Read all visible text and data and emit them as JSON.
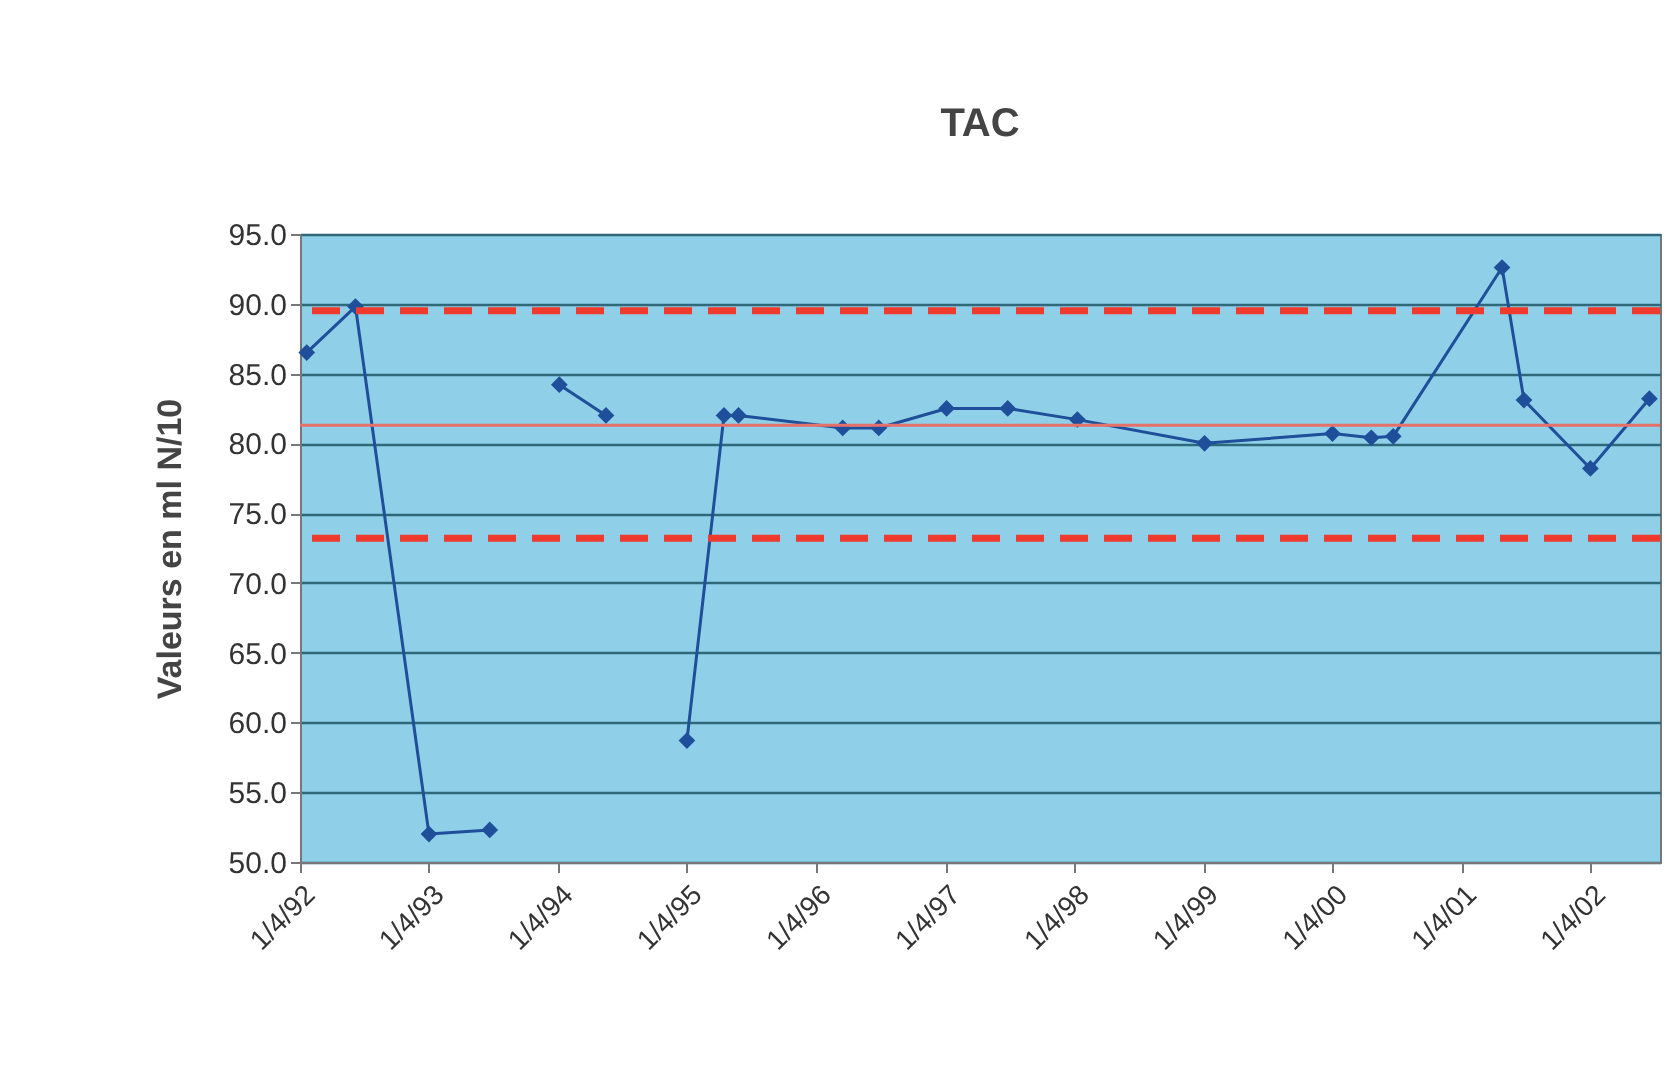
{
  "chart_data": {
    "type": "line",
    "title": "TAC",
    "ylabel": "Valeurs en ml N/10",
    "x": [
      "1992-04-20",
      "1992-09-05",
      "1993-04-01",
      "1993-09-20",
      "1993-12-01",
      "1994-04-05",
      "1994-08-15",
      "1994-12-01",
      "1995-04-01",
      "1995-07-15",
      "1995-08-25",
      "1996-06-15",
      "1996-09-25",
      "1997-04-05",
      "1997-09-25",
      "1998-04-10",
      "1999-04-05",
      "2000-04-01",
      "2000-07-20",
      "2000-09-20",
      "2001-07-25",
      "2001-09-25",
      "2002-04-01",
      "2002-09-15"
    ],
    "series": [
      {
        "color": "#1f4e9a",
        "values": [
          86.5,
          89.8,
          52.0,
          52.3,
          null,
          84.2,
          82.0,
          null,
          58.7,
          82.0,
          82.0,
          81.1,
          81.1,
          82.5,
          82.5,
          81.7,
          80.0,
          80.7,
          80.4,
          80.5,
          92.6,
          83.1,
          78.2,
          83.2
        ]
      }
    ],
    "xlim": [
      "1992-04-01",
      "2002-10-15"
    ],
    "xticks": [
      {
        "value": "1992-04-01",
        "label": "1/4/92"
      },
      {
        "value": "1993-04-01",
        "label": "1/4/93"
      },
      {
        "value": "1994-04-01",
        "label": "1/4/94"
      },
      {
        "value": "1995-04-01",
        "label": "1/4/95"
      },
      {
        "value": "1996-04-01",
        "label": "1/4/96"
      },
      {
        "value": "1997-04-01",
        "label": "1/4/97"
      },
      {
        "value": "1998-04-01",
        "label": "1/4/98"
      },
      {
        "value": "1999-04-01",
        "label": "1/4/99"
      },
      {
        "value": "2000-04-01",
        "label": "1/4/00"
      },
      {
        "value": "2001-04-01",
        "label": "1/4/01"
      },
      {
        "value": "2002-04-01",
        "label": "1/4/02"
      }
    ],
    "ylim": [
      50,
      95
    ],
    "yticks": [
      {
        "value": 50,
        "label": "50.0"
      },
      {
        "value": 55,
        "label": "55.0"
      },
      {
        "value": 60,
        "label": "60.0"
      },
      {
        "value": 65,
        "label": "65.0"
      },
      {
        "value": 70,
        "label": "70.0"
      },
      {
        "value": 75,
        "label": "75.0"
      },
      {
        "value": 80,
        "label": "80.0"
      },
      {
        "value": 85,
        "label": "85.0"
      },
      {
        "value": 90,
        "label": "90.0"
      },
      {
        "value": 95,
        "label": "95.0"
      }
    ],
    "ref_lines": [
      {
        "axis": "y",
        "value": 89.5,
        "color": "#f03a2e",
        "line_style": "dashed"
      },
      {
        "axis": "y",
        "value": 81.3,
        "color": "#e8706a",
        "line_style": "solid"
      },
      {
        "axis": "y",
        "value": 73.2,
        "color": "#f03a2e",
        "line_style": "dashed"
      }
    ],
    "grid": "y",
    "marker": "diamond",
    "line_style": "solid"
  }
}
